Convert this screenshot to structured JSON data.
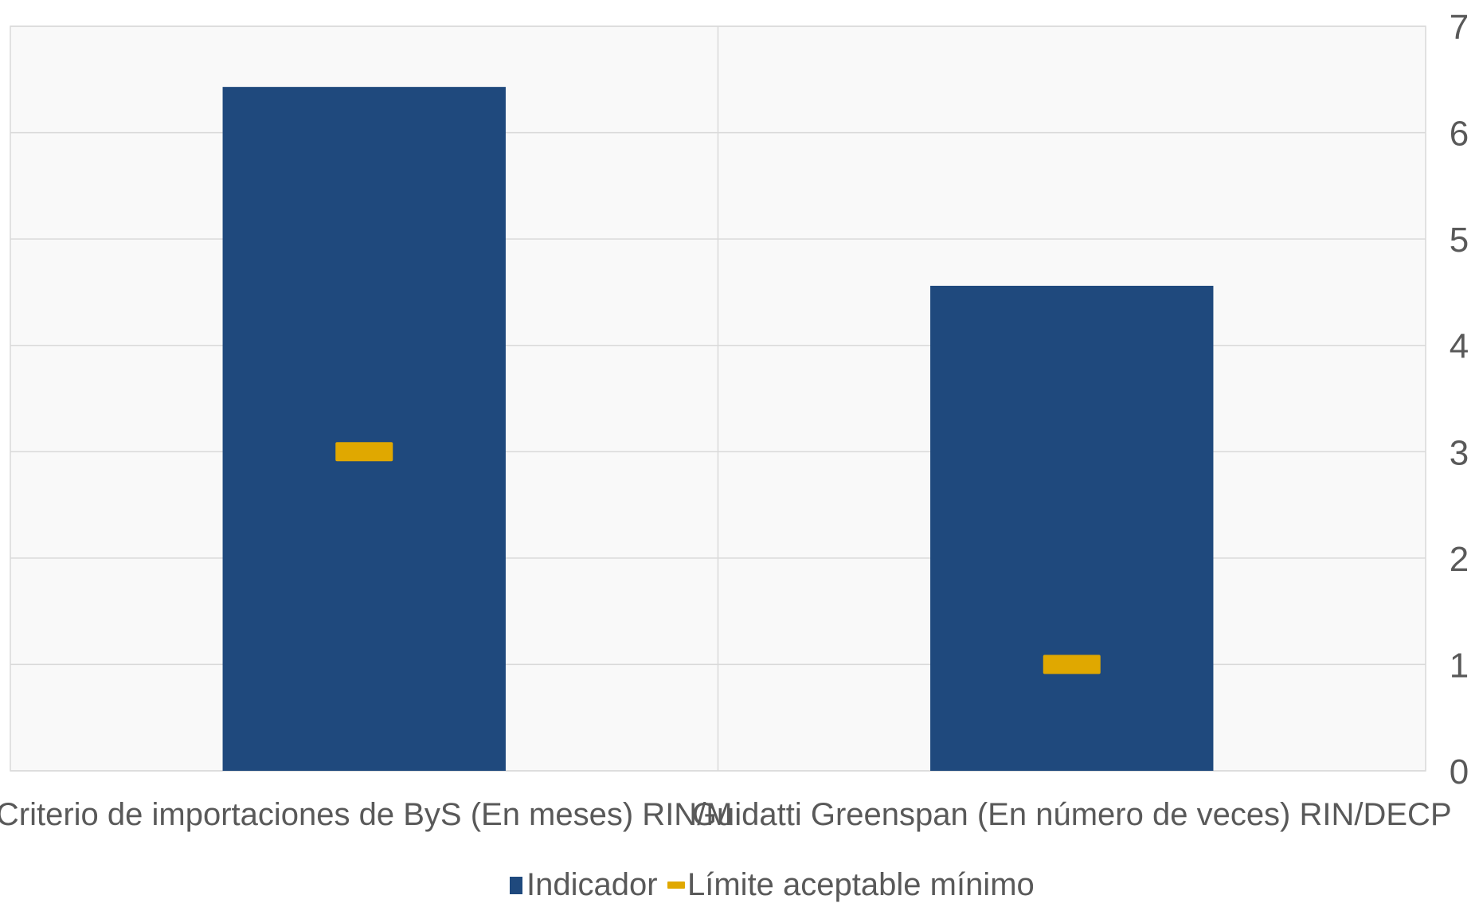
{
  "chart_data": {
    "type": "bar",
    "categories": [
      "Criterio de importaciones de ByS (En meses) RIN/M",
      "Guidatti Greenspan (En número de veces) RIN/DECP"
    ],
    "series": [
      {
        "name": "Indicador",
        "kind": "bar",
        "values": [
          6.43,
          4.56
        ]
      },
      {
        "name": "Límite aceptable mínimo",
        "kind": "marker",
        "values": [
          3,
          1
        ]
      }
    ],
    "ylim": [
      0,
      7
    ],
    "yticks": [
      "0",
      "1",
      "2",
      "3",
      "4",
      "5",
      "6",
      "7"
    ],
    "y_axis_side": "right",
    "grid": true,
    "legend_position": "bottom",
    "colors": {
      "bar": "#1f497d",
      "marker": "#e0a800",
      "plot_background": "#f9f9f9",
      "grid": "#d9d9d9",
      "text": "#595959"
    }
  }
}
